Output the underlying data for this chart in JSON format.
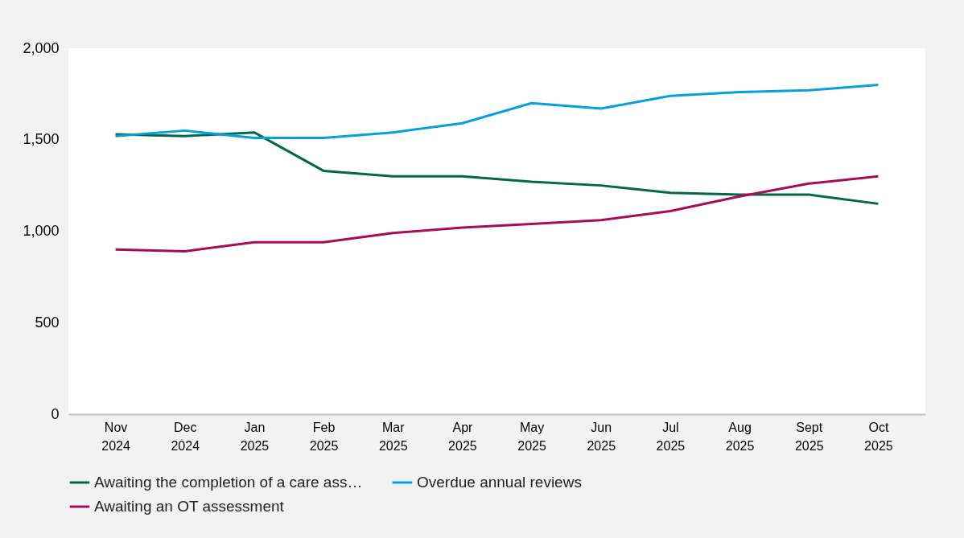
{
  "chart_data": {
    "type": "line",
    "categories": [
      "Nov 2024",
      "Dec 2024",
      "Jan 2025",
      "Feb 2025",
      "Mar 2025",
      "Apr 2025",
      "May 2025",
      "Jun 2025",
      "Jul 2025",
      "Aug 2025",
      "Sept 2025",
      "Oct 2025"
    ],
    "series": [
      {
        "name": "Awaiting the completion of a care ass…",
        "color": "#00694a",
        "values": [
          1530,
          1520,
          1540,
          1330,
          1300,
          1300,
          1270,
          1250,
          1210,
          1200,
          1200,
          1150
        ]
      },
      {
        "name": "Overdue annual reviews",
        "color": "#089ee0",
        "values": [
          1520,
          1550,
          1510,
          1510,
          1540,
          1590,
          1700,
          1670,
          1740,
          1760,
          1770,
          1800
        ]
      },
      {
        "name": "Awaiting an OT assessment",
        "color": "#a70d55",
        "values": [
          900,
          890,
          940,
          940,
          990,
          1020,
          1040,
          1060,
          1110,
          1190,
          1260,
          1300
        ]
      }
    ],
    "ylim": [
      0,
      2000
    ],
    "yticks": [
      0,
      500,
      {
        "value": 1000,
        "label": "1,000"
      },
      {
        "value": 1500,
        "label": "1,500"
      },
      {
        "value": 2000,
        "label": "2,000"
      }
    ],
    "grid": false,
    "legend": "bottom",
    "marker": "none",
    "line_style": "solid"
  }
}
